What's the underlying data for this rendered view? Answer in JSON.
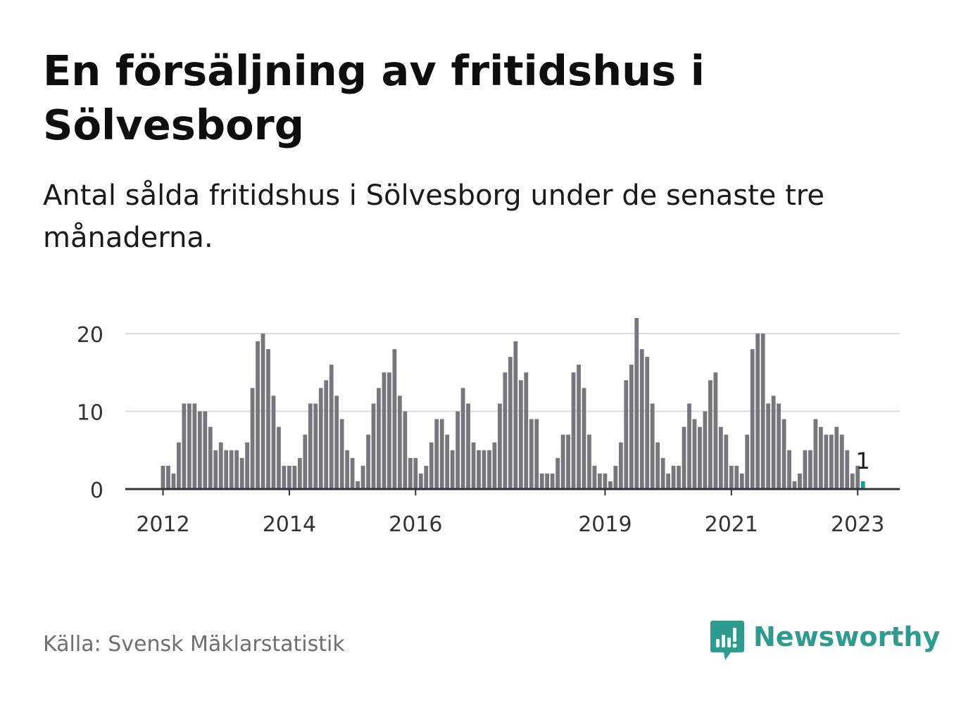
{
  "title": "En försäljning av fritidshus i Sölvesborg",
  "subtitle": "Antal sålda fritidshus i Sölvesborg under de senaste tre månaderna.",
  "source": "Källa: Svensk Mäklarstatistik",
  "brand": {
    "name": "Newsworthy",
    "icon": "bar-chart-bubble-icon",
    "color": "#2e9b8f"
  },
  "colors": {
    "bar": "#76767d",
    "highlight": "#1e9b8e",
    "grid": "#dcdcdc",
    "axis": "#333333",
    "tick_text": "#333333"
  },
  "chart_data": {
    "type": "bar",
    "title": "",
    "xlabel": "",
    "ylabel": "",
    "ylim": [
      0,
      22
    ],
    "yticks": [
      0,
      10,
      20
    ],
    "grid": true,
    "x_start": "2012-01",
    "x_end": "2023-02",
    "xtick_labels": [
      {
        "label": "2012",
        "at": "2012-01"
      },
      {
        "label": "2014",
        "at": "2014-01"
      },
      {
        "label": "2016",
        "at": "2016-01"
      },
      {
        "label": "2019",
        "at": "2019-01"
      },
      {
        "label": "2021",
        "at": "2021-01"
      },
      {
        "label": "2023",
        "at": "2023-01"
      }
    ],
    "values": [
      3,
      3,
      2,
      6,
      11,
      11,
      11,
      10,
      10,
      8,
      5,
      6,
      5,
      5,
      5,
      4,
      6,
      13,
      19,
      20,
      18,
      12,
      8,
      3,
      3,
      3,
      4,
      7,
      11,
      11,
      13,
      14,
      16,
      12,
      9,
      5,
      4,
      1,
      3,
      7,
      11,
      13,
      15,
      15,
      18,
      12,
      10,
      4,
      4,
      2,
      3,
      6,
      9,
      9,
      7,
      5,
      10,
      13,
      11,
      6,
      5,
      5,
      5,
      6,
      11,
      15,
      17,
      19,
      14,
      15,
      9,
      9,
      2,
      2,
      2,
      4,
      7,
      7,
      15,
      16,
      13,
      7,
      3,
      2,
      2,
      1,
      3,
      6,
      14,
      16,
      22,
      18,
      17,
      11,
      6,
      4,
      2,
      3,
      3,
      8,
      11,
      9,
      8,
      10,
      14,
      15,
      8,
      7,
      3,
      3,
      2,
      7,
      18,
      20,
      20,
      11,
      12,
      11,
      9,
      5,
      1,
      2,
      5,
      5,
      9,
      8,
      7,
      7,
      8,
      7,
      5,
      2,
      3,
      1
    ],
    "highlight_index": 133,
    "annotation": {
      "index": 133,
      "text": "1"
    }
  }
}
